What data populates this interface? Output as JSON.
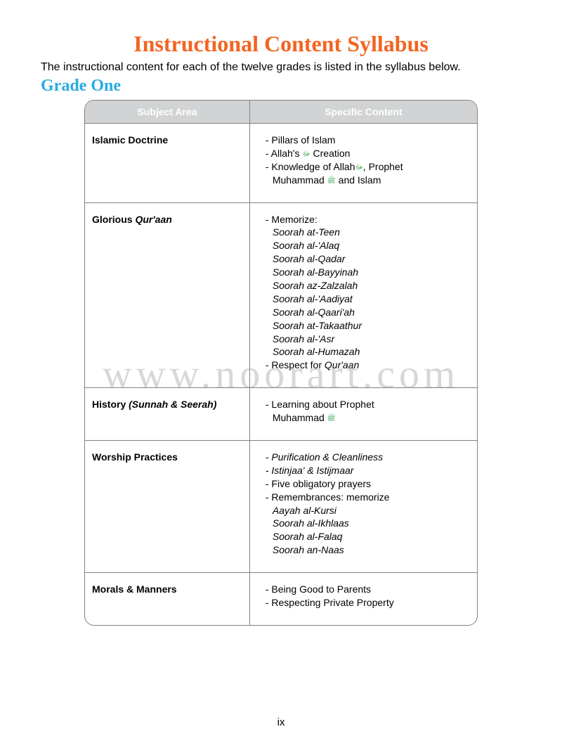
{
  "title": "Instructional Content Syllabus",
  "intro": "The instructional content for each of the twelve grades is listed in the syllabus below.",
  "grade_label": "Grade One",
  "headers": {
    "subject": "Subject Area",
    "content": "Specific Content"
  },
  "rows": {
    "doctrine": {
      "subject": "Islamic Doctrine",
      "l1": "- Pillars of Islam",
      "l2a": "- Allah's ",
      "l2b": " Creation",
      "l3a": "- Knowledge of Allah",
      "l3b": ", Prophet",
      "l4a": "Muhammad ",
      "l4b": " and Islam"
    },
    "quraan": {
      "subject_a": "Glorious ",
      "subject_b": "Qur'aan",
      "l1": "- Memorize:",
      "s1": "Soorah at-Teen",
      "s2": "Soorah al-'Alaq",
      "s3": "Soorah al-Qadar",
      "s4": "Soorah al-Bayyinah",
      "s5": "Soorah az-Zalzalah",
      "s6": "Soorah al-'Aadiyat",
      "s7": "Soorah al-Qaari'ah",
      "s8": "Soorah at-Takaathur",
      "s9": "Soorah al-'Asr",
      "s10": "Soorah al-Humazah",
      "l2a": "- Respect for ",
      "l2b": "Qur'aan"
    },
    "history": {
      "subject_a": "History ",
      "subject_b": "(Sunnah & Seerah)",
      "l1": "- Learning about Prophet",
      "l2a": "Muhammad "
    },
    "worship": {
      "subject": "Worship Practices",
      "l1": "- Purification & Cleanliness",
      "l2": "- Istinjaa' & Istijmaar",
      "l3": "- Five obligatory prayers",
      "l4": "- Remembrances: memorize",
      "s1": "Aayah al-Kursi",
      "s2": "Soorah al-Ikhlaas",
      "s3": "Soorah al-Falaq",
      "s4": "Soorah an-Naas"
    },
    "morals": {
      "subject": "Morals & Manners",
      "l1": "- Being Good to Parents",
      "l2": "- Respecting Private Property"
    }
  },
  "honorifics": {
    "swt": "ﷻ",
    "saw": "ﷺ"
  },
  "pagenum": "ix",
  "watermark": "www.noorart.com"
}
